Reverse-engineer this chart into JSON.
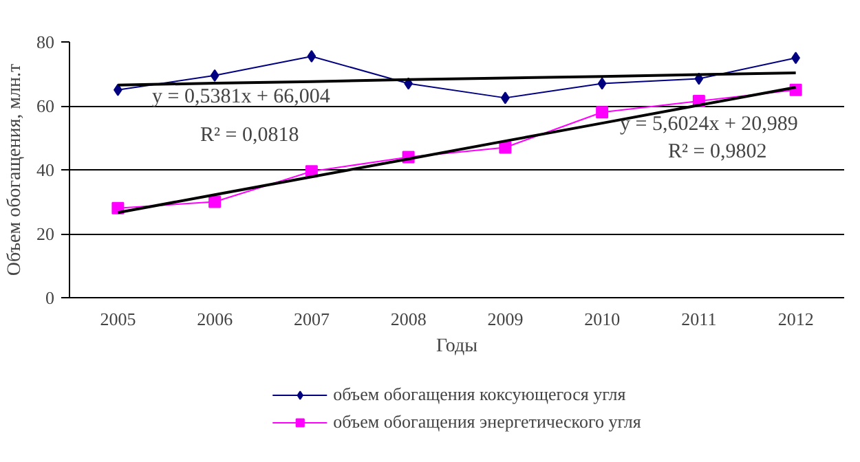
{
  "chart_data": {
    "type": "line",
    "xlabel": "Годы",
    "ylabel": "Объем обогащения, млн.т",
    "categories": [
      "2005",
      "2006",
      "2007",
      "2008",
      "2009",
      "2010",
      "2011",
      "2012"
    ],
    "ylim": [
      0,
      80
    ],
    "yticks": [
      0,
      20,
      40,
      60,
      80
    ],
    "grid": "y",
    "legend": "bottom",
    "series": [
      {
        "name": "объем обогащения коксующегося угля",
        "color": "#000080",
        "marker": "diamond",
        "values": [
          65,
          69.5,
          75.5,
          67,
          62.5,
          67,
          68.5,
          75
        ]
      },
      {
        "name": "объем обогащения энергетического угля",
        "color": "#ff00ff",
        "marker": "square",
        "values": [
          28,
          30,
          39.5,
          44,
          47,
          58,
          61.5,
          65
        ]
      },
      {
        "type": "line",
        "color": "#000000",
        "marker": "none",
        "values": [
          66.5,
          67.1,
          67.6,
          68.2,
          68.7,
          69.2,
          69.8,
          70.3
        ]
      },
      {
        "type": "line",
        "color": "#000000",
        "marker": "none",
        "values": [
          26.6,
          32.2,
          37.8,
          43.4,
          49.0,
          54.6,
          60.2,
          65.8
        ]
      }
    ],
    "annotations": [
      "y = 0,5381x + 66,004",
      "R² = 0,0818",
      "y = 5,6024x + 20,989",
      "R² = 0,9802"
    ]
  }
}
